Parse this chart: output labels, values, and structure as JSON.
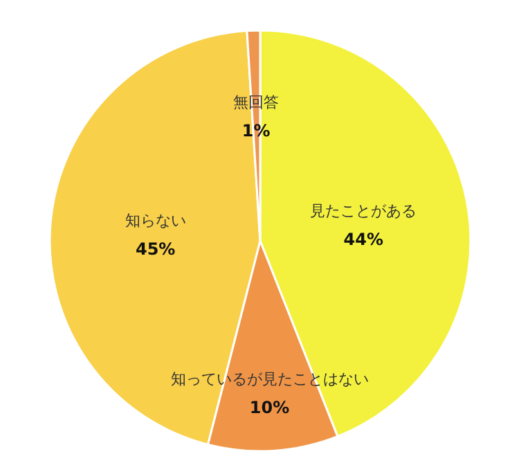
{
  "chart_data": {
    "type": "pie",
    "categories": [
      "見たことがある",
      "知っているが見たことはない",
      "知らない",
      "無回答"
    ],
    "values": [
      44,
      10,
      45,
      1
    ],
    "value_labels": [
      "44%",
      "10%",
      "45%",
      "1%"
    ],
    "colors": [
      "#f3f13e",
      "#f09548",
      "#f8d04a",
      "#ee9650"
    ]
  }
}
